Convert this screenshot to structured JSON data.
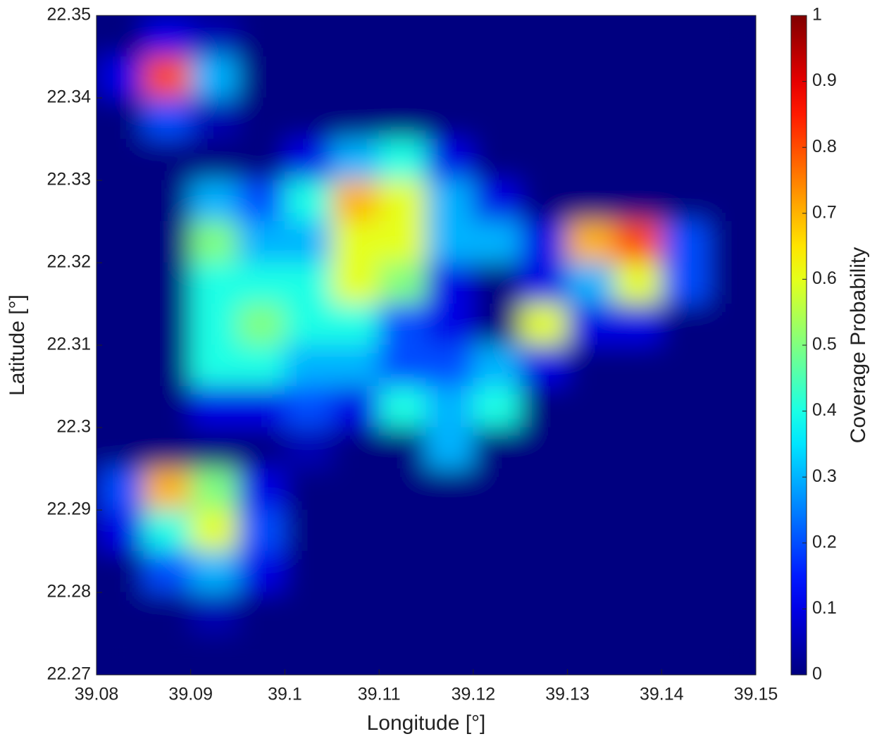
{
  "chart_data": {
    "type": "heatmap",
    "xlabel": "Longitude [°]",
    "ylabel": "Latitude [°]",
    "colorbar_label": "Coverage Probability",
    "colormap": "jet",
    "xlim": [
      39.08,
      39.15
    ],
    "ylim": [
      22.27,
      22.35
    ],
    "xticks": [
      39.08,
      39.09,
      39.1,
      39.11,
      39.12,
      39.13,
      39.14,
      39.15
    ],
    "yticks": [
      22.27,
      22.28,
      22.29,
      22.3,
      22.31,
      22.32,
      22.33,
      22.34,
      22.35
    ],
    "clim": [
      0,
      1
    ],
    "colorbar_ticks": [
      0,
      0.1,
      0.2,
      0.3,
      0.4,
      0.5,
      0.6,
      0.7,
      0.8,
      0.9,
      1
    ],
    "values": [
      [
        0,
        0.1,
        0.05,
        0,
        0,
        0,
        0,
        0,
        0,
        0,
        0,
        0,
        0,
        0
      ],
      [
        0.1,
        0.8,
        0.3,
        0,
        0,
        0,
        0,
        0,
        0,
        0,
        0,
        0,
        0,
        0
      ],
      [
        0,
        0.2,
        0.05,
        0,
        0,
        0,
        0,
        0,
        0,
        0,
        0,
        0,
        0,
        0
      ],
      [
        0,
        0,
        0,
        0,
        0.1,
        0.3,
        0.4,
        0.1,
        0,
        0,
        0,
        0,
        0,
        0
      ],
      [
        0,
        0,
        0.3,
        0.2,
        0.4,
        0.7,
        0.6,
        0.3,
        0.1,
        0,
        0,
        0,
        0,
        0
      ],
      [
        0,
        0,
        0.5,
        0.3,
        0.3,
        0.6,
        0.6,
        0.3,
        0.3,
        0.1,
        0.7,
        0.8,
        0.2,
        0
      ],
      [
        0,
        0,
        0.4,
        0.4,
        0.4,
        0.6,
        0.5,
        0.1,
        0,
        0.1,
        0.3,
        0.6,
        0.2,
        0
      ],
      [
        0,
        0,
        0.4,
        0.5,
        0.4,
        0.4,
        0.2,
        0.1,
        0,
        0.6,
        0.1,
        0.1,
        0,
        0
      ],
      [
        0,
        0,
        0.4,
        0.4,
        0.3,
        0.3,
        0.2,
        0.2,
        0.3,
        0.1,
        0,
        0,
        0,
        0
      ],
      [
        0,
        0,
        0.1,
        0.1,
        0.2,
        0.1,
        0.4,
        0.3,
        0.4,
        0,
        0,
        0,
        0,
        0
      ],
      [
        0,
        0,
        0,
        0,
        0.05,
        0,
        0,
        0.3,
        0,
        0,
        0,
        0,
        0,
        0
      ],
      [
        0.2,
        0.7,
        0.5,
        0.1,
        0,
        0,
        0,
        0,
        0,
        0,
        0,
        0,
        0,
        0
      ],
      [
        0.1,
        0.4,
        0.6,
        0.2,
        0,
        0,
        0,
        0,
        0,
        0,
        0,
        0,
        0,
        0
      ],
      [
        0,
        0.2,
        0.3,
        0.1,
        0,
        0,
        0,
        0,
        0,
        0,
        0,
        0,
        0,
        0
      ],
      [
        0,
        0,
        0.05,
        0,
        0,
        0,
        0,
        0,
        0,
        0,
        0,
        0,
        0,
        0
      ],
      [
        0,
        0,
        0,
        0,
        0,
        0,
        0,
        0,
        0,
        0,
        0,
        0,
        0,
        0
      ]
    ]
  }
}
